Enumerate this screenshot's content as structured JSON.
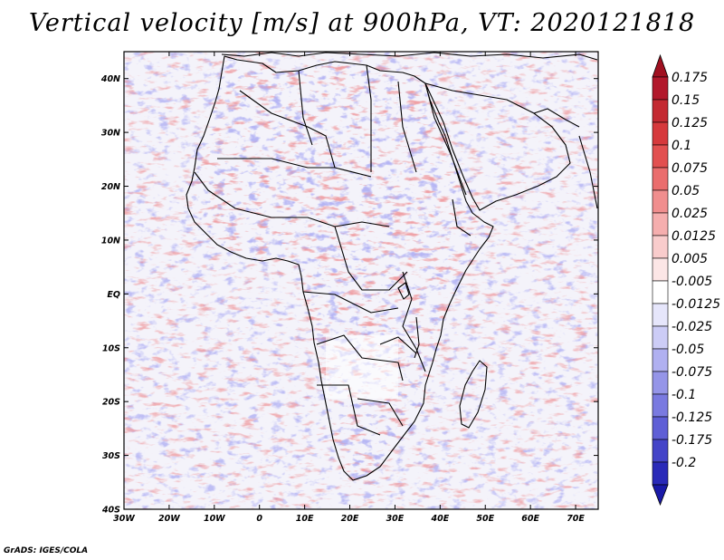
{
  "title": "Vertical velocity [m/s] at 900hPa, VT: 2020121818",
  "credit": "GrADS: IGES/COLA",
  "map": {
    "lat_range": [
      -40,
      45
    ],
    "lon_range": [
      -30,
      75
    ],
    "lat_ticks": [
      "40N",
      "30N",
      "20N",
      "10N",
      "EQ",
      "10S",
      "20S",
      "30S",
      "40S"
    ],
    "lon_ticks": [
      "30W",
      "20W",
      "10W",
      "0",
      "10E",
      "20E",
      "30E",
      "40E",
      "50E",
      "60E",
      "70E"
    ],
    "field": "vertical velocity",
    "level": "900hPa",
    "valid_time": "2020121818"
  },
  "colorbar": {
    "levels": [
      {
        "label": "0.175",
        "color": "#b2182b"
      },
      {
        "label": "0.15",
        "color": "#c42a32"
      },
      {
        "label": "0.125",
        "color": "#d6393c"
      },
      {
        "label": "0.1",
        "color": "#e25050"
      },
      {
        "label": "0.075",
        "color": "#ea6d6d"
      },
      {
        "label": "0.05",
        "color": "#f08e8e"
      },
      {
        "label": "0.025",
        "color": "#f5aeae"
      },
      {
        "label": "0.0125",
        "color": "#f9cccc"
      },
      {
        "label": "0.005",
        "color": "#fce6e6"
      },
      {
        "label": "-0.005",
        "color": "#ffffff"
      },
      {
        "label": "-0.0125",
        "color": "#e6e6fb"
      },
      {
        "label": "-0.025",
        "color": "#ccccf6"
      },
      {
        "label": "-0.05",
        "color": "#b0b0f0"
      },
      {
        "label": "-0.075",
        "color": "#9595e8"
      },
      {
        "label": "-0.1",
        "color": "#7a7ae0"
      },
      {
        "label": "-0.125",
        "color": "#5f5fd6"
      },
      {
        "label": "-0.175",
        "color": "#4444c8"
      },
      {
        "label": "-0.2",
        "color": "#2a2ab8"
      }
    ],
    "top_arrow_color": "#a01020",
    "bottom_arrow_color": "#1a1aa8"
  }
}
